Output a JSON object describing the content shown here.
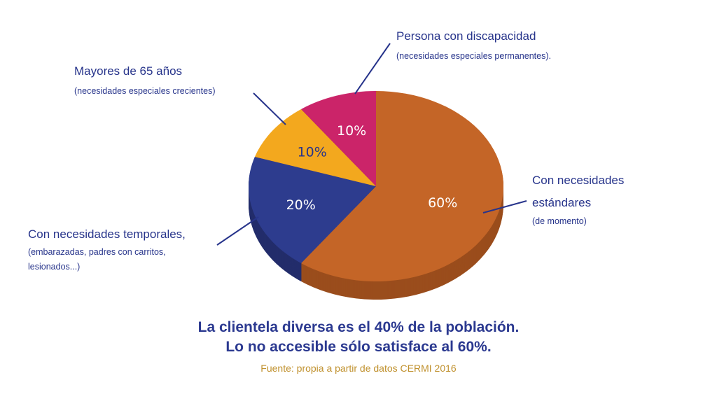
{
  "chart_data": {
    "type": "pie",
    "style": "3d",
    "slices": [
      {
        "label": "Con necesidades estándares",
        "note": "(de momento)",
        "value": 60,
        "value_label": "60%",
        "color": "#c46527",
        "side_color": "#9a4d1c",
        "text_color": "#ffffff"
      },
      {
        "label": "Con necesidades temporales,",
        "note": "(embarazadas, padres con carritos, lesionados...)",
        "note_lines": [
          "(embarazadas, padres con carritos,",
          "lesionados...)"
        ],
        "value": 20,
        "value_label": "20%",
        "color": "#2d3c8e",
        "side_color": "#232d6b",
        "text_color": "#ffffff"
      },
      {
        "label": "Mayores de 65 años",
        "note": "(necesidades especiales crecientes)",
        "value": 10,
        "value_label": "10%",
        "color": "#f3a81e",
        "side_color": "#e8930c",
        "text_color": "#27348b"
      },
      {
        "label": "Persona con discapacidad",
        "note": "(necesidades especiales permanentes).",
        "value": 10,
        "value_label": "10%",
        "color": "#cb2469",
        "side_color": "#a11b52",
        "text_color": "#ffffff"
      }
    ],
    "start_angle": "top",
    "direction": "clockwise"
  },
  "headline": [
    "La clientela diversa es el 40% de la población.",
    "Lo no accesible sólo satisface al 60%."
  ],
  "source": "Fuente: propia a partir de datos CERMI 2016"
}
